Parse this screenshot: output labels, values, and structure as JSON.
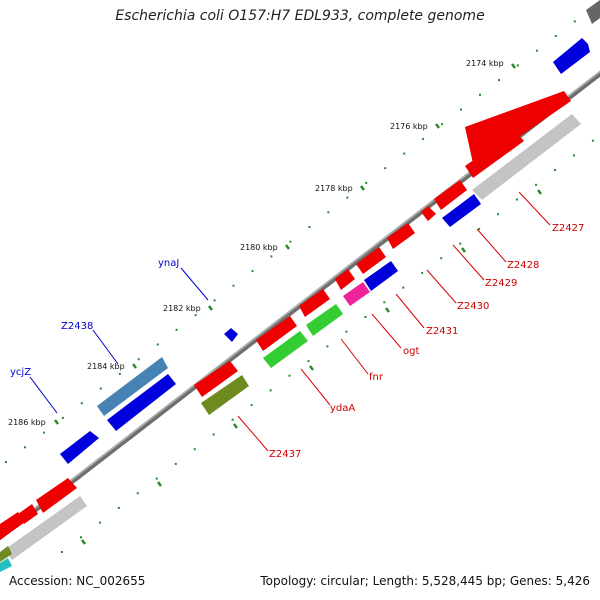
{
  "title": "Escherichia coli O157:H7 EDL933, complete genome",
  "footer": {
    "accession": "Accession: NC_002655",
    "summary": "Topology: circular; Length: 5,528,445 bp; Genes: 5,426"
  },
  "scale_labels": [
    "2174 kbp",
    "2176 kbp",
    "2178 kbp",
    "2180 kbp",
    "2182 kbp",
    "2184 kbp",
    "2186 kbp"
  ],
  "gene_labels": {
    "forward": [
      "ynaJ",
      "Z2438",
      "ycjZ"
    ],
    "reverse": [
      "Z2427",
      "Z2428",
      "Z2429",
      "Z2430",
      "Z2431",
      "ogt",
      "fnr",
      "ydaA",
      "Z2437"
    ]
  },
  "colors": {
    "forward_label": "#0000cc",
    "reverse_label": "#cc0000",
    "backbone": "#7a7a7a",
    "tick": "#2a8a2a",
    "cds_red": "#ee0000",
    "cds_blue": "#0000dd",
    "cds_green": "#33cc33",
    "cds_olive": "#6f8a1f",
    "cds_magenta": "#ee2299",
    "cds_steel": "#4682b4",
    "cds_gray": "#c4c4c4"
  }
}
